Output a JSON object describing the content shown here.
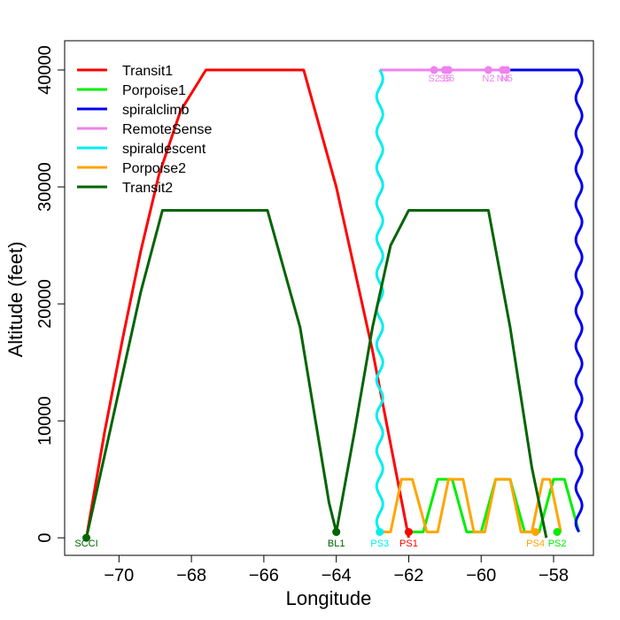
{
  "chart_data": {
    "type": "line",
    "xlabel": "Longitude",
    "ylabel": "Altitude (feet)",
    "xlim": [
      -71.5,
      -56.9
    ],
    "ylim": [
      -1500,
      42500
    ],
    "x_ticks": [
      -70,
      -68,
      -66,
      -64,
      -62,
      -60,
      -58
    ],
    "y_ticks": [
      0,
      10000,
      20000,
      30000,
      40000
    ],
    "grid": false,
    "legend_position": "top-left",
    "series": [
      {
        "name": "Transit1",
        "color": "#ff0000",
        "style": "line",
        "points": [
          [
            -70.9,
            0
          ],
          [
            -70.4,
            9000
          ],
          [
            -69.9,
            17000
          ],
          [
            -69.4,
            24500
          ],
          [
            -68.9,
            31000
          ],
          [
            -68.3,
            36500
          ],
          [
            -67.6,
            40000
          ],
          [
            -64.9,
            40000
          ],
          [
            -64.0,
            30000
          ],
          [
            -63.0,
            16000
          ],
          [
            -62.0,
            0
          ]
        ]
      },
      {
        "name": "Porpoise1",
        "color": "#00ee00",
        "style": "line",
        "points": [
          [
            -62.0,
            500
          ],
          [
            -61.6,
            500
          ],
          [
            -61.2,
            5000
          ],
          [
            -60.8,
            5000
          ],
          [
            -60.4,
            500
          ],
          [
            -60.0,
            500
          ],
          [
            -59.6,
            5000
          ],
          [
            -59.2,
            5000
          ],
          [
            -58.8,
            500
          ],
          [
            -58.4,
            500
          ],
          [
            -58.0,
            5000
          ],
          [
            -57.7,
            5000
          ],
          [
            -57.3,
            500
          ]
        ]
      },
      {
        "name": "spiralclimb",
        "color": "#0000ee",
        "style": "wavy-vertical",
        "x": -57.3,
        "y_from": 500,
        "y_to": 40000,
        "segment_points": [
          [
            -59.2,
            40000
          ],
          [
            -57.3,
            40000
          ]
        ]
      },
      {
        "name": "RemoteSense",
        "color": "#ee82ee",
        "style": "line",
        "points": [
          [
            -62.8,
            40000
          ],
          [
            -59.2,
            40000
          ]
        ]
      },
      {
        "name": "spiraldescent",
        "color": "#00eeee",
        "style": "wavy-vertical",
        "x": -62.8,
        "y_from": 40000,
        "y_to": 500
      },
      {
        "name": "Porpoise2",
        "color": "#ffa500",
        "style": "line",
        "points": [
          [
            -62.8,
            500
          ],
          [
            -62.5,
            500
          ],
          [
            -62.2,
            5000
          ],
          [
            -61.9,
            5000
          ],
          [
            -61.5,
            500
          ],
          [
            -61.2,
            500
          ],
          [
            -60.9,
            5000
          ],
          [
            -60.5,
            5000
          ],
          [
            -60.2,
            500
          ],
          [
            -59.9,
            500
          ],
          [
            -59.6,
            5000
          ],
          [
            -59.2,
            5000
          ],
          [
            -58.9,
            500
          ],
          [
            -58.6,
            500
          ],
          [
            -58.3,
            5000
          ],
          [
            -58.1,
            5000
          ],
          [
            -57.8,
            500
          ]
        ]
      },
      {
        "name": "Transit2",
        "color": "#006400",
        "style": "line",
        "points": [
          [
            -70.9,
            0
          ],
          [
            -70.4,
            7000
          ],
          [
            -69.9,
            14000
          ],
          [
            -69.4,
            21000
          ],
          [
            -68.8,
            28000
          ],
          [
            -65.9,
            28000
          ],
          [
            -65.0,
            18000
          ],
          [
            -64.2,
            3000
          ],
          [
            -64.0,
            500
          ],
          [
            -63.5,
            9000
          ],
          [
            -63.0,
            18000
          ],
          [
            -62.5,
            25000
          ],
          [
            -62.0,
            28000
          ],
          [
            -59.8,
            28000
          ],
          [
            -59.2,
            18000
          ],
          [
            -58.6,
            6000
          ],
          [
            -58.2,
            0
          ]
        ]
      }
    ],
    "markers": [
      {
        "label": "SCCI",
        "x": -70.9,
        "y": 0,
        "color": "#006400"
      },
      {
        "label": "BL1",
        "x": -64.0,
        "y": 500,
        "color": "#006400"
      },
      {
        "label": "PS3",
        "x": -62.8,
        "y": 500,
        "color": "#00eeee"
      },
      {
        "label": "PS1",
        "x": -62.0,
        "y": 500,
        "color": "#ff0000"
      },
      {
        "label": "PS4",
        "x": -58.5,
        "y": 500,
        "color": "#ffa500"
      },
      {
        "label": "PS2",
        "x": -57.9,
        "y": 500,
        "color": "#00ee00"
      }
    ],
    "top_markers": [
      {
        "label": "S2",
        "x": -61.3,
        "y": 40000
      },
      {
        "label": "S5",
        "x": -61.0,
        "y": 40000
      },
      {
        "label": "S6",
        "x": -60.9,
        "y": 40000
      },
      {
        "label": "N2",
        "x": -59.8,
        "y": 40000
      },
      {
        "label": "N4",
        "x": -59.4,
        "y": 40000
      },
      {
        "label": "N5",
        "x": -59.3,
        "y": 40000
      }
    ],
    "top_marker_color": "#ee82ee"
  }
}
